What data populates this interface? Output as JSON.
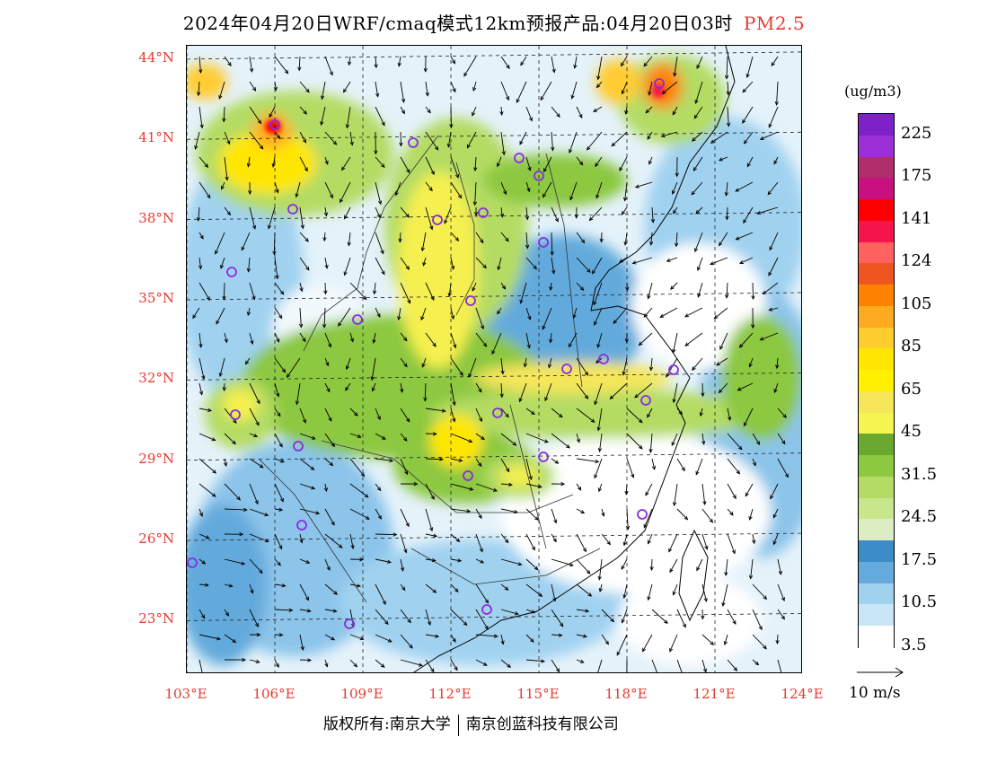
{
  "title": {
    "main": "2024年04月20日WRF/cmaq模式12km预报产品:04月20日03时",
    "species": "PM2.5"
  },
  "map": {
    "lat_labels": [
      "44°N",
      "41°N",
      "38°N",
      "35°N",
      "32°N",
      "29°N",
      "26°N",
      "23°N"
    ],
    "lon_labels": [
      "103°E",
      "106°E",
      "109°E",
      "112°E",
      "115°E",
      "118°E",
      "121°E",
      "124°E"
    ],
    "lon_range": [
      103,
      124
    ],
    "lat_range": [
      21,
      44.5
    ]
  },
  "legend": {
    "unit": "(ug/m3)",
    "colors": [
      "#7e21c9",
      "#9b30d6",
      "#b02e6b",
      "#c8107e",
      "#ff0000",
      "#f5154b",
      "#ff6060",
      "#ee5520",
      "#ff8200",
      "#ffaa20",
      "#ffcc30",
      "#ffe600",
      "#fff000",
      "#f5e65a",
      "#f5f550",
      "#6aa830",
      "#8cc840",
      "#b4dc64",
      "#c8e68c",
      "#dcecc3",
      "#3c8cc8",
      "#64aadc",
      "#a0d2f0",
      "#c8e6f5",
      "#ffffff"
    ],
    "labels": [
      "225",
      "175",
      "141",
      "124",
      "105",
      "85",
      "65",
      "45",
      "31.5",
      "24.5",
      "17.5",
      "10.5",
      "3.5"
    ]
  },
  "wind_scale": {
    "label": "10 m/s"
  },
  "footer": {
    "copyright": "版权所有:南京大学",
    "company": "南京创蓝科技有限公司"
  },
  "colors": {
    "label_red": "#e8382f",
    "station_circle": "#8a2be2"
  }
}
